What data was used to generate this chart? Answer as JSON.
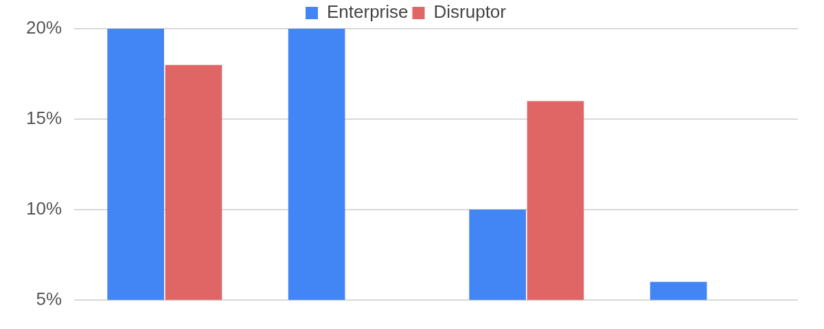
{
  "chart_data": {
    "type": "bar",
    "categories": [
      null,
      null,
      null,
      null
    ],
    "series": [
      {
        "name": "Enterprise",
        "color": "#4285f4",
        "values": [
          20,
          20,
          10,
          6
        ]
      },
      {
        "name": "Disruptor",
        "color": "#e06666",
        "values": [
          18,
          null,
          16,
          null
        ]
      }
    ],
    "ylim": [
      5,
      20
    ],
    "yticks": [
      {
        "value": 5,
        "label": "5%"
      },
      {
        "value": 10,
        "label": "10%"
      },
      {
        "value": 15,
        "label": "15%"
      },
      {
        "value": 20,
        "label": "20%"
      }
    ],
    "grid": "y",
    "legend": "top"
  }
}
